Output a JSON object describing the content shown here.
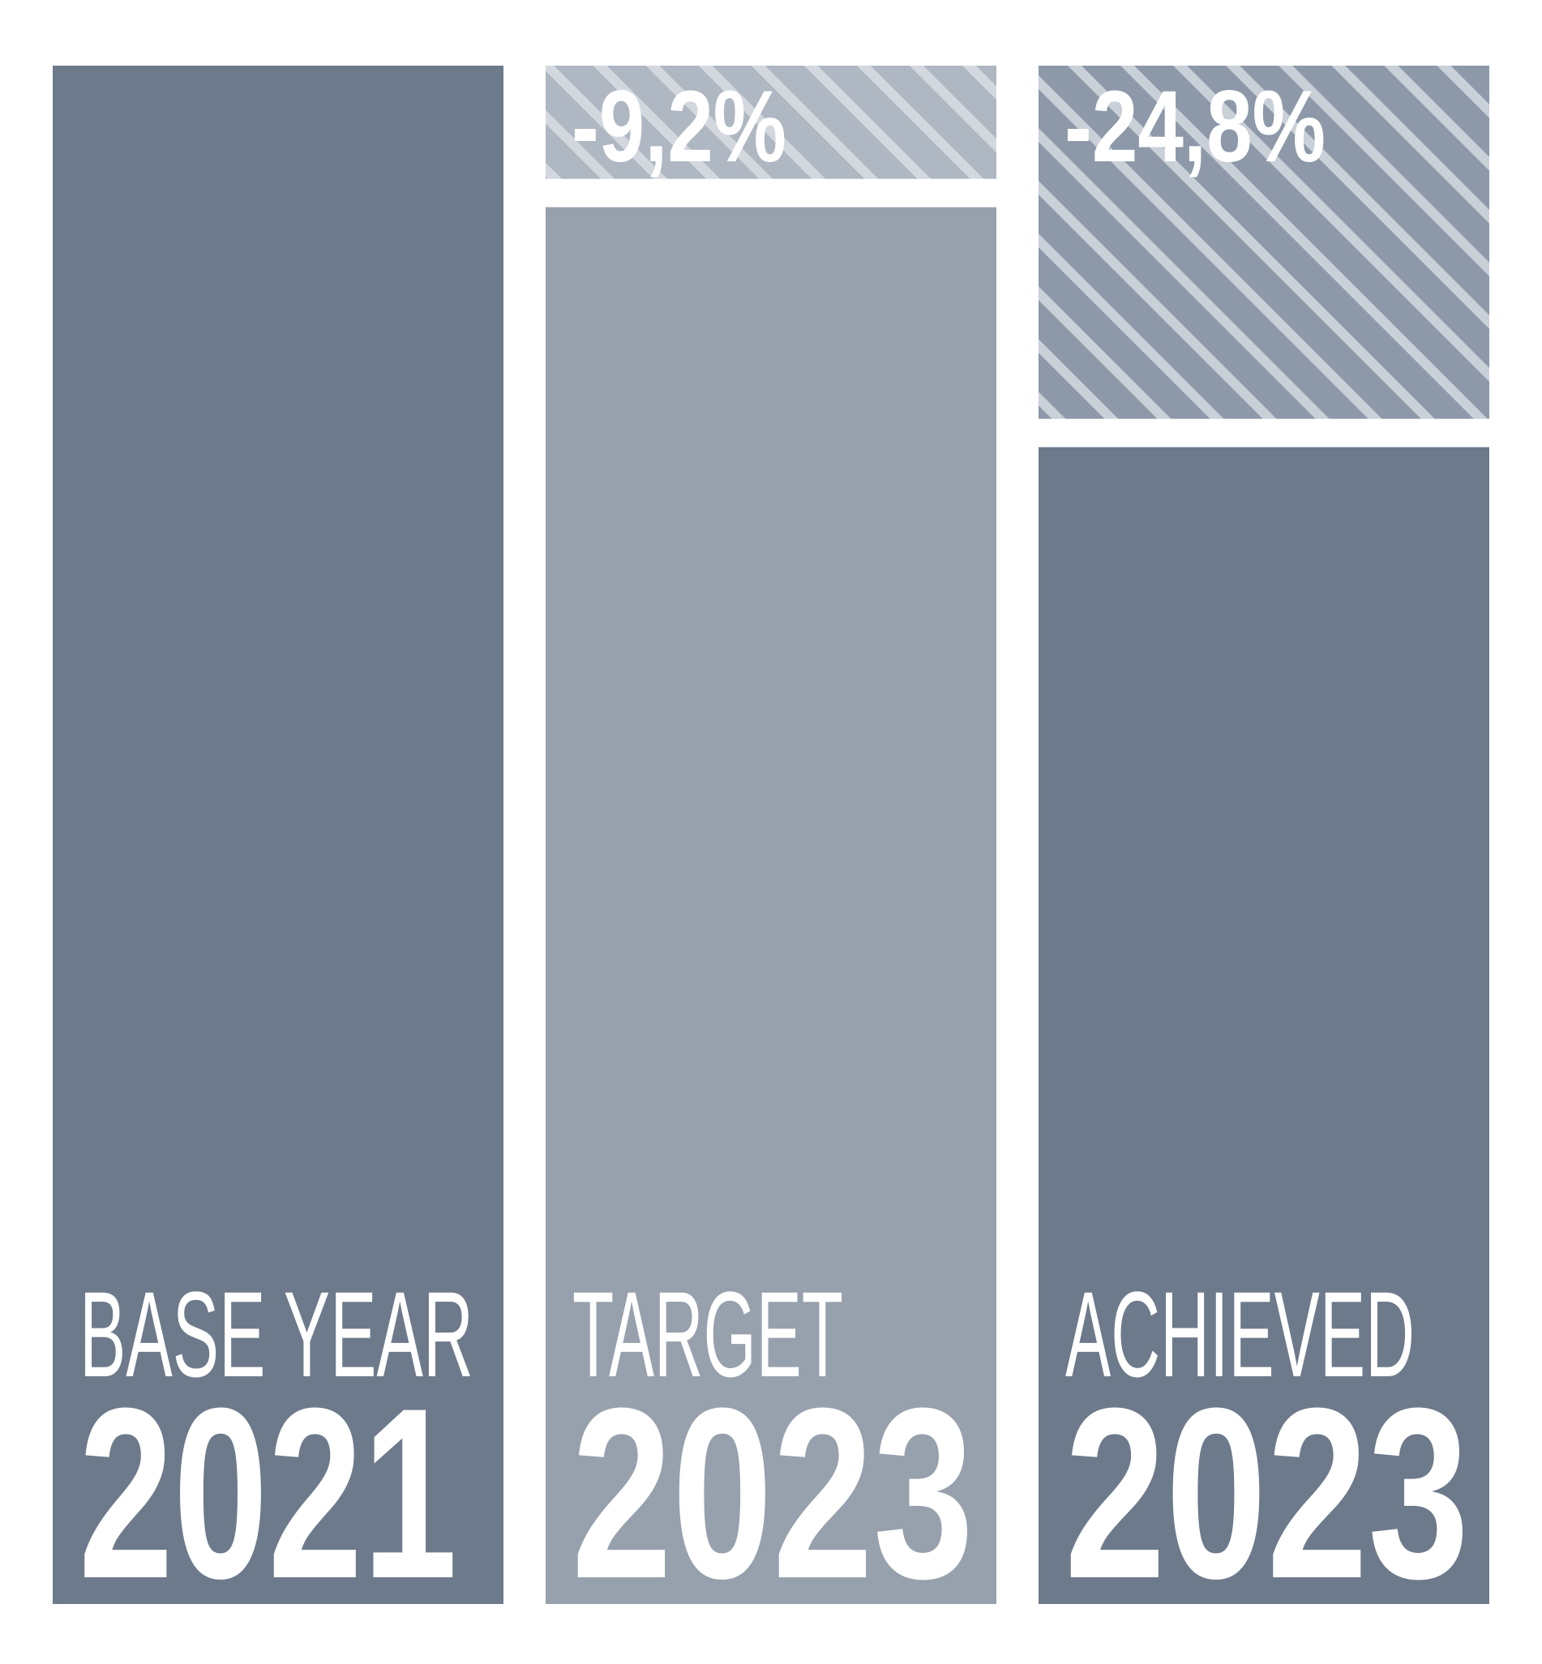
{
  "chart_data": {
    "type": "bar",
    "categories": [
      "BASE YEAR",
      "TARGET",
      "ACHIEVED"
    ],
    "years": [
      "2021",
      "2023",
      "2023"
    ],
    "values": [
      0,
      -9.2,
      -24.8
    ],
    "value_labels": [
      null,
      "-9,2%",
      "-24,8%"
    ],
    "colors": [
      "#6d7a8b",
      "#97a1ad",
      "#6d7a8b"
    ],
    "ylim": [
      -100,
      0
    ]
  }
}
